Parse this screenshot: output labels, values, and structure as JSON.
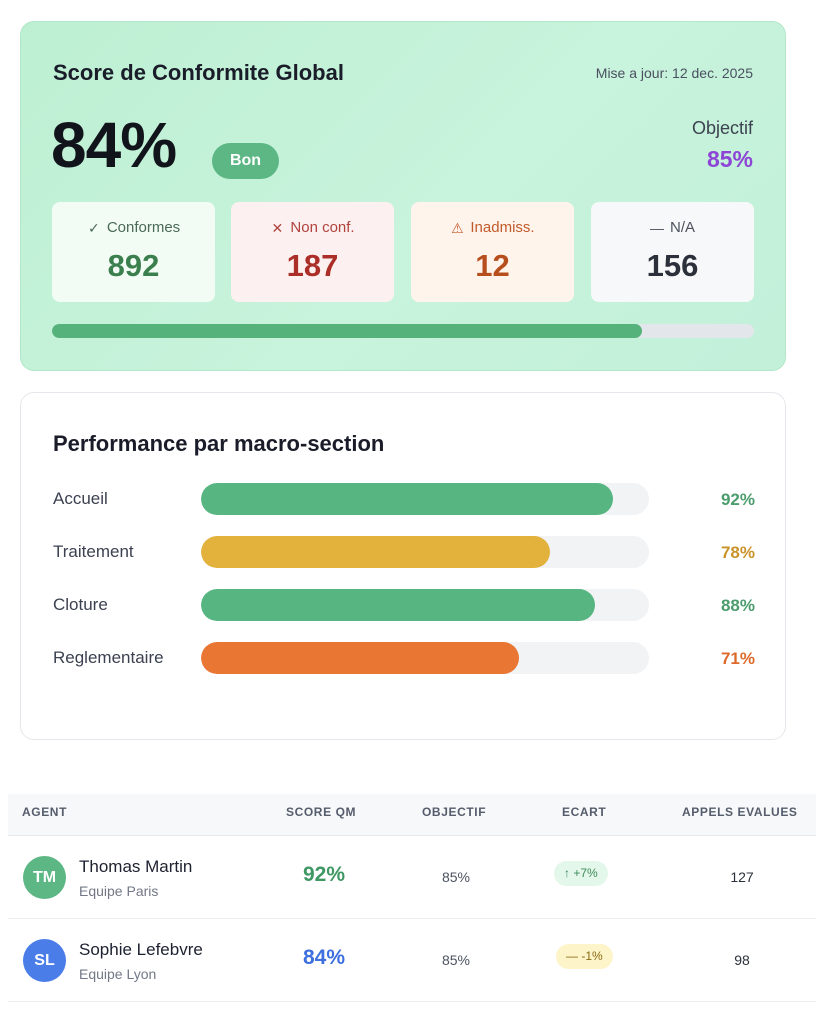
{
  "score_card": {
    "title": "Score de Conformite Global",
    "updated": "Mise a jour: 12 dec. 2025",
    "score": "84%",
    "score_fraction": 0.84,
    "status_badge": "Bon",
    "target_label": "Objectif",
    "target_value": "85%",
    "stats": [
      {
        "icon": "check-icon",
        "glyph": "✓",
        "label": "Conformes",
        "value": "892"
      },
      {
        "icon": "cross-icon",
        "glyph": "✕",
        "label": "Non conf.",
        "value": "187"
      },
      {
        "icon": "warning-icon",
        "glyph": "⚠",
        "label": "Inadmiss.",
        "value": "12"
      },
      {
        "icon": "dash-icon",
        "glyph": "—",
        "label": "N/A",
        "value": "156"
      }
    ]
  },
  "macro": {
    "title": "Performance par macro-section",
    "rows": [
      {
        "label": "Accueil",
        "pct": "92%",
        "value": 92,
        "color": "#56b580"
      },
      {
        "label": "Traitement",
        "pct": "78%",
        "value": 78,
        "color": "#e2b23c"
      },
      {
        "label": "Cloture",
        "pct": "88%",
        "value": 88,
        "color": "#56b580"
      },
      {
        "label": "Reglementaire",
        "pct": "71%",
        "value": 71,
        "color": "#ea7634"
      }
    ],
    "pct_colors": [
      "#4b9c6c",
      "#c9932a",
      "#4b9c6c",
      "#dd6a2c"
    ]
  },
  "table": {
    "headers": {
      "agent": "AGENT",
      "score": "SCORE QM",
      "target": "OBJECTIF",
      "gap": "ECART",
      "calls": "APPELS EVALUES"
    },
    "rows": [
      {
        "initials": "TM",
        "avatar_color": "#5cb784",
        "name": "Thomas Martin",
        "team": "Equipe Paris",
        "score": "92%",
        "score_color": "#3f9763",
        "target": "85%",
        "gap_icon": "arrow-up-icon",
        "gap": "↑ +7%",
        "gap_bg": "#e3f7ea",
        "gap_color": "#3f8a5b",
        "calls": "127"
      },
      {
        "initials": "SL",
        "avatar_color": "#4a7de8",
        "name": "Sophie Lefebvre",
        "team": "Equipe Lyon",
        "score": "84%",
        "score_color": "#3d6fde",
        "target": "85%",
        "gap_icon": "dash-icon",
        "gap": "— -1%",
        "gap_bg": "#fdf4c9",
        "gap_color": "#8b6b14",
        "calls": "98"
      }
    ]
  }
}
